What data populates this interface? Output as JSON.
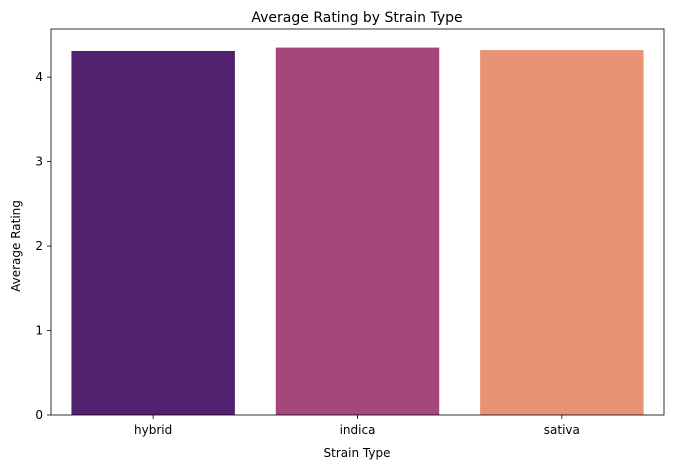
{
  "chart_data": {
    "type": "bar",
    "title": "Average Rating by Strain Type",
    "xlabel": "Strain Type",
    "ylabel": "Average Rating",
    "categories": [
      "hybrid",
      "indica",
      "sativa"
    ],
    "values": [
      4.31,
      4.35,
      4.32
    ],
    "colors": [
      "#51206f",
      "#a6477b",
      "#e89374"
    ],
    "yticks": [
      0,
      1,
      2,
      3,
      4
    ],
    "ylim": [
      0,
      4.57
    ],
    "grid": false,
    "legend": "none"
  }
}
